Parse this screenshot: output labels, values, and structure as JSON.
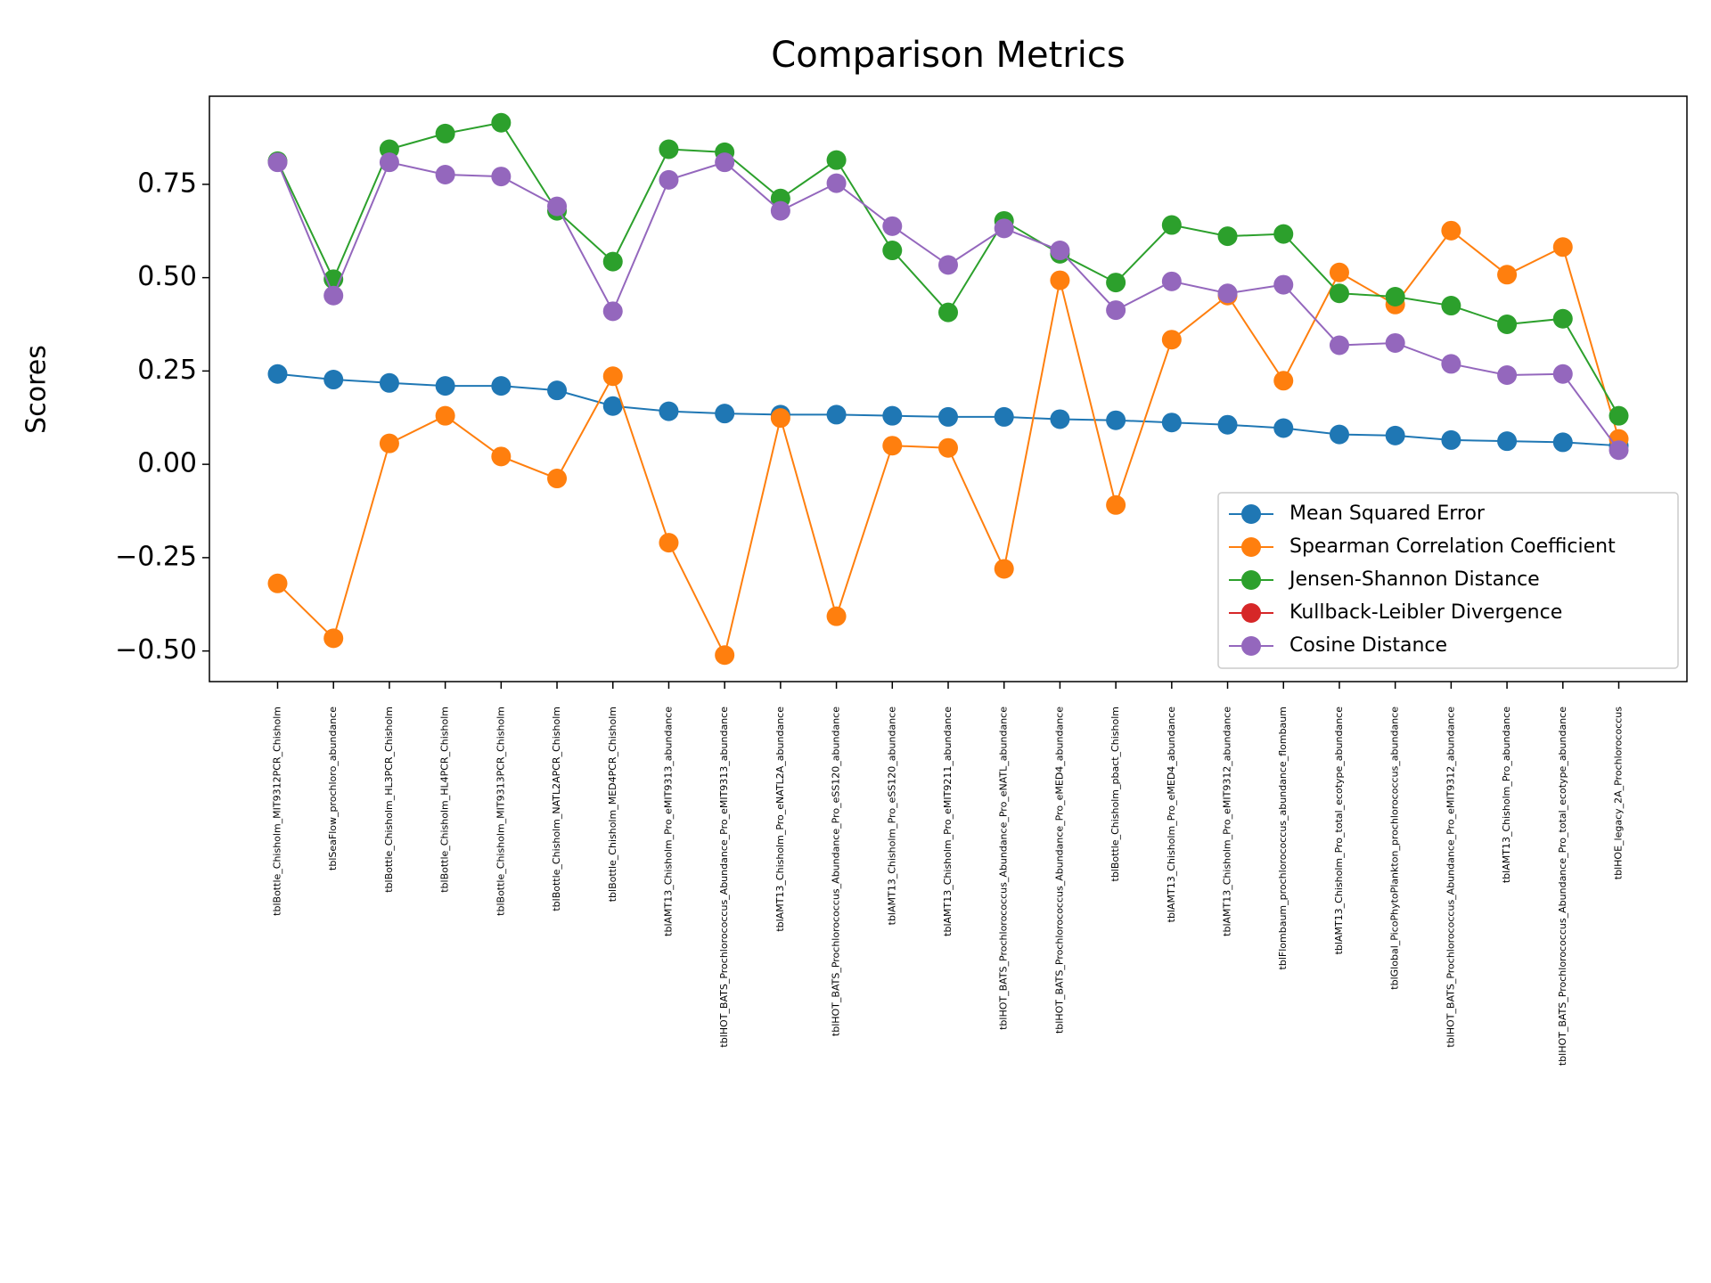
{
  "chart_data": {
    "type": "line",
    "title": "Comparison Metrics",
    "ylabel": "Scores",
    "categories": [
      "tblBottle_Chisholm_MIT9312PCR_Chisholm",
      "tblSeaFlow_prochloro_abundance",
      "tblBottle_Chisholm_HL3PCR_Chisholm",
      "tblBottle_Chisholm_HL4PCR_Chisholm",
      "tblBottle_Chisholm_MIT9313PCR_Chisholm",
      "tblBottle_Chisholm_NATL2APCR_Chisholm",
      "tblBottle_Chisholm_MED4PCR_Chisholm",
      "tblAMT13_Chisholm_Pro_eMIT9313_abundance",
      "tblHOT_BATS_Prochlorococcus_Abundance_Pro_eMIT9313_abundance",
      "tblAMT13_Chisholm_Pro_eNATL2A_abundance",
      "tblHOT_BATS_Prochlorococcus_Abundance_Pro_eSS120_abundance",
      "tblAMT13_Chisholm_Pro_eSS120_abundance",
      "tblAMT13_Chisholm_Pro_eMIT9211_abundance",
      "tblHOT_BATS_Prochlorococcus_Abundance_Pro_eNATL_abundance",
      "tblHOT_BATS_Prochlorococcus_Abundance_Pro_eMED4_abundance",
      "tblBottle_Chisholm_pbact_Chisholm",
      "tblAMT13_Chisholm_Pro_eMED4_abundance",
      "tblAMT13_Chisholm_Pro_eMIT9312_abundance",
      "tblFlombaum_prochlorococcus_abundance_flombaum",
      "tblAMT13_Chisholm_Pro_total_ecotype_abundance",
      "tblGlobal_PicoPhytoPlankton_prochlorococcus_abundance",
      "tblHOT_BATS_Prochlorococcus_Abundance_Pro_eMIT9312_abundance",
      "tblAMT13_Chisholm_Pro_abundance",
      "tblHOT_BATS_Prochlorococcus_Abundance_Pro_total_ecotype_abundance",
      "tblHOE_legacy_2A_Prochlorococcus"
    ],
    "series": [
      {
        "name": "Mean Squared Error",
        "color": "#1f77b4",
        "values": [
          0.242,
          0.227,
          0.218,
          0.21,
          0.21,
          0.198,
          0.156,
          0.142,
          0.136,
          0.133,
          0.133,
          0.13,
          0.127,
          0.127,
          0.121,
          0.118,
          0.112,
          0.106,
          0.097,
          0.08,
          0.077,
          0.065,
          0.062,
          0.059,
          0.05
        ]
      },
      {
        "name": "Spearman Correlation Coefficient",
        "color": "#ff7f0e",
        "values": [
          -0.319,
          -0.466,
          0.056,
          0.13,
          0.021,
          -0.038,
          0.236,
          -0.21,
          -0.511,
          0.124,
          -0.407,
          0.05,
          0.044,
          -0.28,
          0.493,
          -0.109,
          0.334,
          0.452,
          0.224,
          0.514,
          0.428,
          0.626,
          0.508,
          0.582,
          0.068
        ]
      },
      {
        "name": "Jensen-Shannon Distance",
        "color": "#2ca02c",
        "values": [
          0.812,
          0.496,
          0.844,
          0.886,
          0.915,
          0.679,
          0.543,
          0.844,
          0.836,
          0.712,
          0.815,
          0.573,
          0.407,
          0.652,
          0.564,
          0.487,
          0.641,
          0.611,
          0.617,
          0.458,
          0.449,
          0.425,
          0.375,
          0.39,
          0.13
        ]
      },
      {
        "name": "Kullback-Leibler Divergence",
        "color": "#d62728",
        "values": [
          null,
          null,
          null,
          null,
          null,
          null,
          null,
          null,
          null,
          null,
          null,
          null,
          null,
          null,
          null,
          null,
          null,
          null,
          null,
          null,
          null,
          null,
          null,
          null,
          null
        ]
      },
      {
        "name": "Cosine Distance",
        "color": "#9467bd",
        "values": [
          0.809,
          0.452,
          0.809,
          0.776,
          0.771,
          0.691,
          0.41,
          0.762,
          0.809,
          0.679,
          0.753,
          0.638,
          0.534,
          0.632,
          0.573,
          0.413,
          0.49,
          0.458,
          0.481,
          0.319,
          0.325,
          0.269,
          0.239,
          0.242,
          0.038
        ]
      }
    ],
    "ylim": [
      -0.582,
      0.986
    ],
    "yticks": [
      {
        "value": -0.5,
        "label": "−0.50"
      },
      {
        "value": -0.25,
        "label": "−0.25"
      },
      {
        "value": 0,
        "label": "0.00"
      },
      0.25,
      {
        "value": 0.5,
        "label": "0.50"
      },
      0.75
    ],
    "grid": false,
    "legend": "lower right"
  }
}
